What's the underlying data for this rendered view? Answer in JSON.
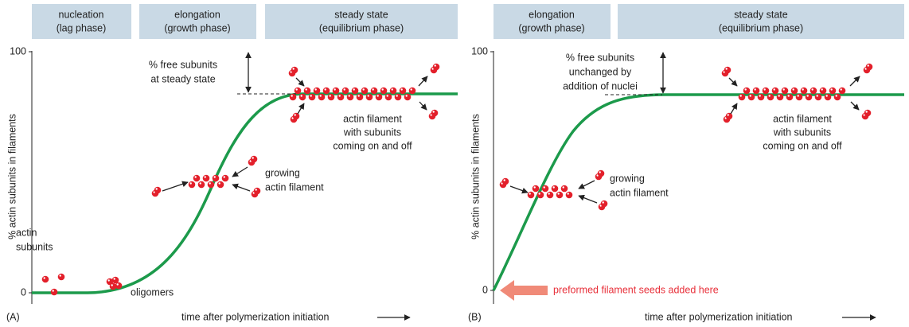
{
  "panel_a": {
    "label": "(A)",
    "headers": [
      [
        "nucleation",
        "(lag phase)"
      ],
      [
        "elongation",
        "(growth phase)"
      ],
      [
        "steady state",
        "(equilibrium phase)"
      ]
    ],
    "y_axis_label": "% actin subunits in filaments",
    "y_top": 100,
    "y_bottom": 0,
    "x_axis_label": "time after polymerization initiation",
    "free_subunits": [
      "% free subunits",
      "at steady state"
    ],
    "actin_filament": [
      "actin filament",
      "with subunits",
      "coming on and off"
    ],
    "growing": [
      "growing",
      "actin filament"
    ],
    "subunits": [
      "actin",
      "subunits"
    ],
    "oligomers": "oligomers"
  },
  "panel_b": {
    "label": "(B)",
    "headers": [
      [
        "elongation",
        "(growth phase)"
      ],
      [
        "steady state",
        "(equilibrium phase)"
      ]
    ],
    "y_axis_label": "% actin subunits in filaments",
    "y_top": 100,
    "y_bottom": 0,
    "x_axis_label": "time after polymerization initiation",
    "free_subunits": [
      "% free subunits",
      "unchanged by",
      "addition of nuclei"
    ],
    "actin_filament": [
      "actin filament",
      "with subunits",
      "coming on and off"
    ],
    "growing": [
      "growing",
      "actin filament"
    ],
    "seeds": "preformed filament seeds added here"
  }
}
